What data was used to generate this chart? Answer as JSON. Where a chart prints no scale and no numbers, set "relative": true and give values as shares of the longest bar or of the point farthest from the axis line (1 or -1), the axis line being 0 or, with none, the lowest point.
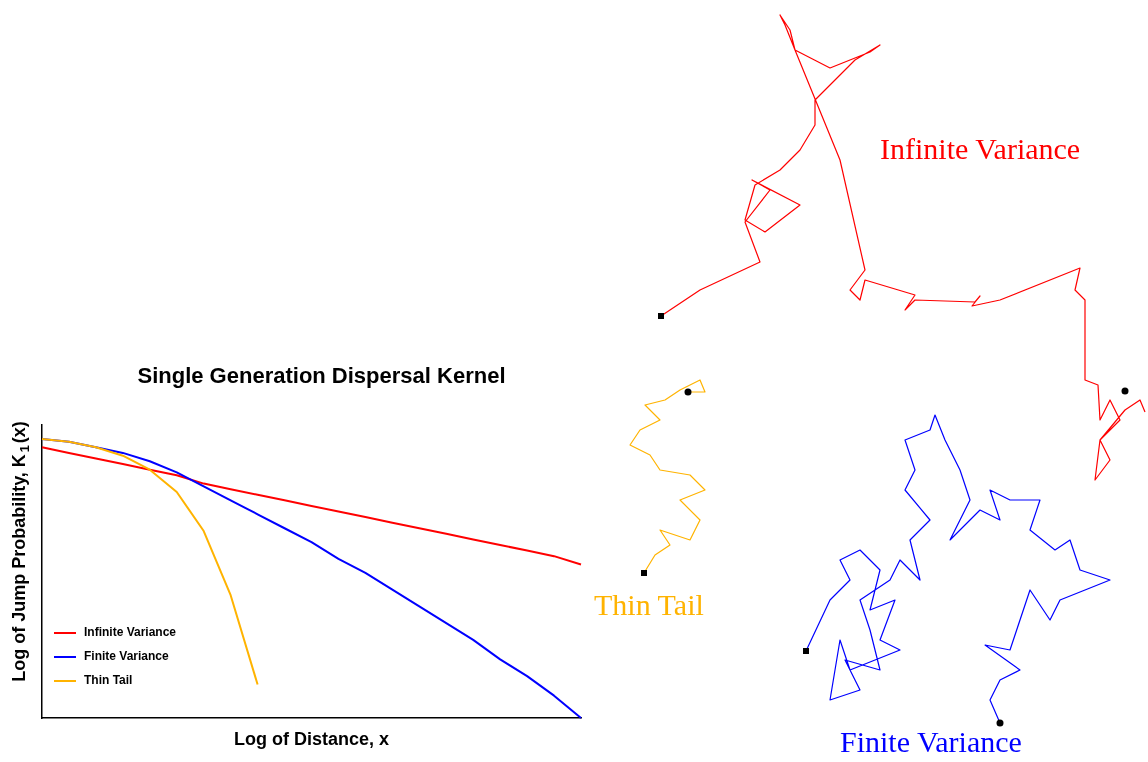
{
  "chart_data": {
    "type": "line",
    "title": "Single Generation Dispersal Kernel",
    "xlabel": "Log of Distance, x",
    "ylabel": "Log of Jump Probability, K$_{1}$(x)",
    "relative": true,
    "grid": false,
    "legend": "bottom left",
    "marker": "none",
    "line_style": "solid",
    "categories": [
      null,
      null,
      null,
      null,
      null,
      null,
      null,
      null,
      null,
      null,
      null,
      null,
      null,
      null,
      null,
      null,
      null,
      null,
      null,
      null,
      null
    ],
    "series": [
      {
        "name": "Infinite Variance",
        "color": "#ff0000",
        "values": [
          0.97,
          0.95,
          0.93,
          0.91,
          0.89,
          0.87,
          0.84,
          0.82,
          0.8,
          0.78,
          0.76,
          0.74,
          0.72,
          0.7,
          0.68,
          0.66,
          0.64,
          0.62,
          0.6,
          0.58,
          0.55
        ]
      },
      {
        "name": "Finite Variance",
        "color": "#0000ff",
        "values": [
          1,
          0.99,
          0.97,
          0.95,
          0.92,
          0.88,
          0.83,
          0.78,
          0.73,
          0.68,
          0.63,
          0.57,
          0.52,
          0.46,
          0.4,
          0.34,
          0.28,
          0.21,
          0.15,
          0.08,
          0
        ]
      },
      {
        "name": "Thin Tail",
        "color": "#ffb300",
        "values": [
          1,
          0.99,
          0.97,
          0.94,
          0.89,
          0.81,
          0.67,
          0.44,
          0.12,
          null,
          null,
          null,
          null,
          null,
          null,
          null,
          null,
          null,
          null,
          null,
          null
        ]
      }
    ],
    "annotations": [
      "Infinite Variance",
      "Finite Variance",
      "Thin Tail"
    ]
  }
}
